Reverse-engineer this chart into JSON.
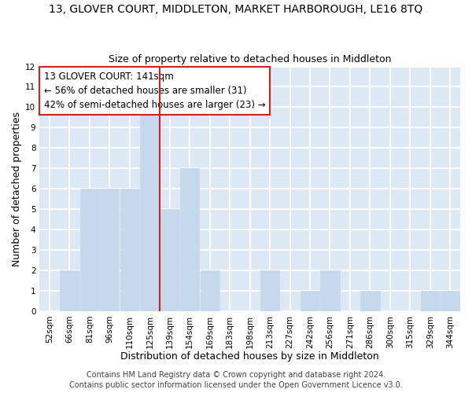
{
  "title": "13, GLOVER COURT, MIDDLETON, MARKET HARBOROUGH, LE16 8TQ",
  "subtitle": "Size of property relative to detached houses in Middleton",
  "xlabel": "Distribution of detached houses by size in Middleton",
  "ylabel": "Number of detached properties",
  "bar_labels": [
    "52sqm",
    "66sqm",
    "81sqm",
    "96sqm",
    "110sqm",
    "125sqm",
    "139sqm",
    "154sqm",
    "169sqm",
    "183sqm",
    "198sqm",
    "213sqm",
    "227sqm",
    "242sqm",
    "256sqm",
    "271sqm",
    "286sqm",
    "300sqm",
    "315sqm",
    "329sqm",
    "344sqm"
  ],
  "bar_values": [
    0,
    2,
    6,
    6,
    6,
    10,
    5,
    7,
    2,
    0,
    0,
    2,
    0,
    1,
    2,
    0,
    1,
    0,
    0,
    1,
    1
  ],
  "highlight_index": 6,
  "bar_color_normal": "#c6d9ec",
  "ylim": [
    0,
    12
  ],
  "yticks": [
    0,
    1,
    2,
    3,
    4,
    5,
    6,
    7,
    8,
    9,
    10,
    11,
    12
  ],
  "annotation_title": "13 GLOVER COURT: 141sqm",
  "annotation_line1": "← 56% of detached houses are smaller (31)",
  "annotation_line2": "42% of semi-detached houses are larger (23) →",
  "footer_line1": "Contains HM Land Registry data © Crown copyright and database right 2024.",
  "footer_line2": "Contains public sector information licensed under the Open Government Licence v3.0.",
  "background_color": "#ffffff",
  "plot_bg_color": "#dce9f5",
  "grid_color": "#ffffff",
  "vline_color": "#cc2222",
  "title_fontsize": 10,
  "subtitle_fontsize": 9,
  "axis_label_fontsize": 9,
  "tick_fontsize": 7.5,
  "footer_fontsize": 7,
  "ann_fontsize": 8.5
}
